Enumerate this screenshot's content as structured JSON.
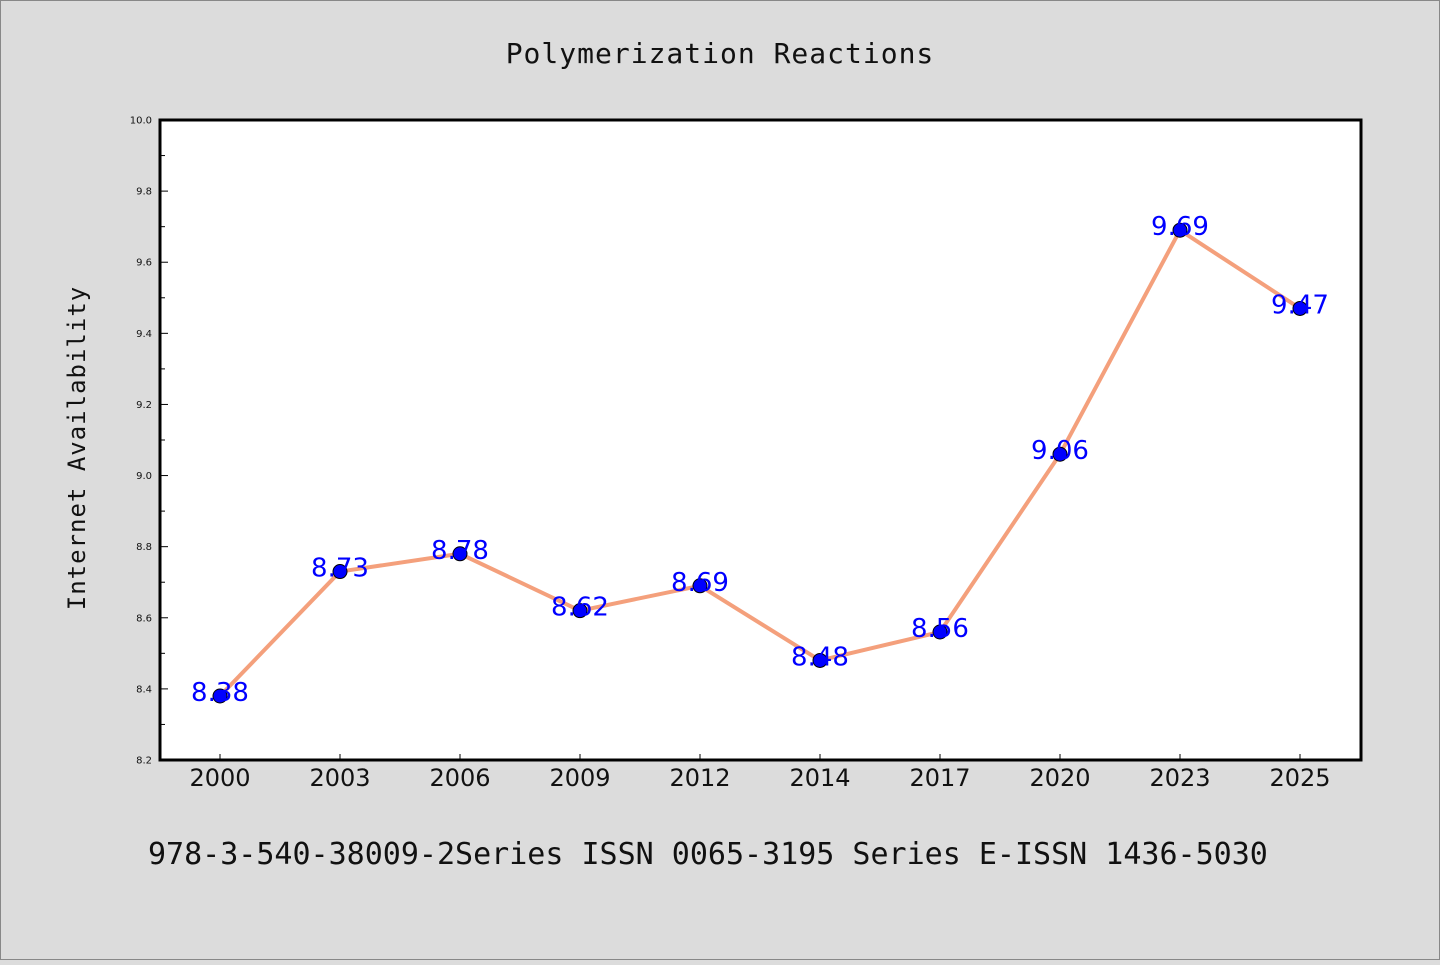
{
  "chart_data": {
    "type": "line",
    "title": "Polymerization Reactions",
    "xlabel": "",
    "ylabel": "Internet Availability",
    "categories": [
      "2000",
      "2003",
      "2006",
      "2009",
      "2012",
      "2014",
      "2017",
      "2020",
      "2023",
      "2025"
    ],
    "series": [
      {
        "values": [
          8.38,
          8.73,
          8.78,
          8.62,
          8.69,
          8.48,
          8.56,
          9.06,
          9.69,
          9.47
        ],
        "data_labels": [
          "8.38",
          "8.73",
          "8.78",
          "8.62",
          "8.69",
          "8.48",
          "8.56",
          "9.06",
          "9.69",
          "9.47"
        ],
        "line_color": "#f4a07c",
        "marker_color": "#0000ff"
      }
    ],
    "ylim": [
      8.2,
      10.0
    ],
    "yticks": [
      "8.2",
      "8.4",
      "8.6",
      "8.8",
      "9.0",
      "9.2",
      "9.4",
      "9.6",
      "9.8",
      "10.0"
    ],
    "grid": false,
    "legend": "none"
  },
  "footer": {
    "text": "978-3-540-38009-2Series ISSN 0065-3195 Series E-ISSN 1436-5030"
  },
  "colors": {
    "background": "#dcdcdc",
    "plot_background": "#ffffff",
    "axis": "#000000",
    "label": "#0000ff"
  }
}
